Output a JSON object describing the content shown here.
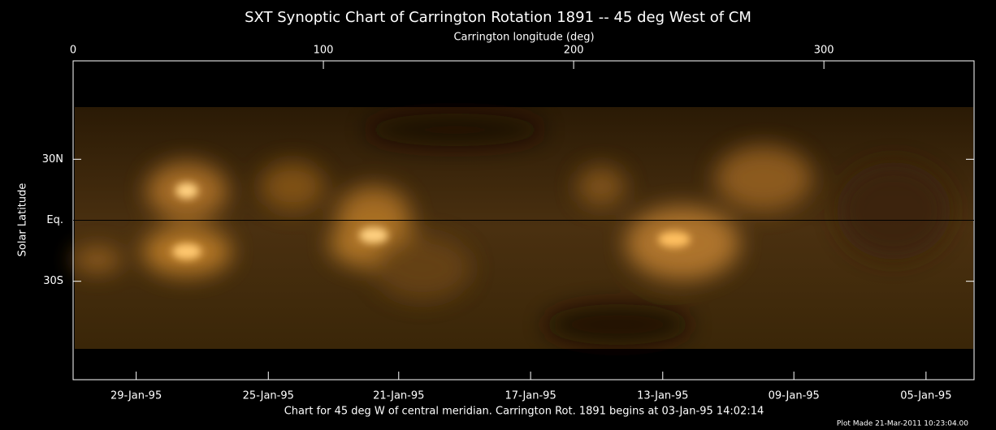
{
  "chart_data": {
    "type": "image",
    "title": "SXT Synoptic Chart of Carrington Rotation 1891 -- 45 deg West of CM",
    "x_label": "Carrington longitude (deg)",
    "y_label": "Solar Latitude",
    "xlim": [
      0,
      360
    ],
    "xticks": [
      0,
      100,
      200,
      300
    ],
    "ylim": [
      -78.4,
      78.4
    ],
    "yticks": [
      {
        "value": 30,
        "label": "30N"
      },
      {
        "value": 0,
        "label": "Eq."
      },
      {
        "value": -30,
        "label": "30S"
      }
    ],
    "bottom_ticks": [
      {
        "value": 25.2,
        "label": "29-Jan-95"
      },
      {
        "value": 78,
        "label": "25-Jan-95"
      },
      {
        "value": 130.1,
        "label": "21-Jan-95"
      },
      {
        "value": 182.8,
        "label": "17-Jan-95"
      },
      {
        "value": 235.6,
        "label": "13-Jan-95"
      },
      {
        "value": 288,
        "label": "09-Jan-95"
      },
      {
        "value": 340.8,
        "label": "05-Jan-95"
      }
    ],
    "footer": "Chart for 45 deg W of central meridian.  Carrington Rot. 1891 begins at 03-Jan-95 14:02:14",
    "plot_made": "Plot Made 21-Mar-2011 10:23:04.00"
  }
}
